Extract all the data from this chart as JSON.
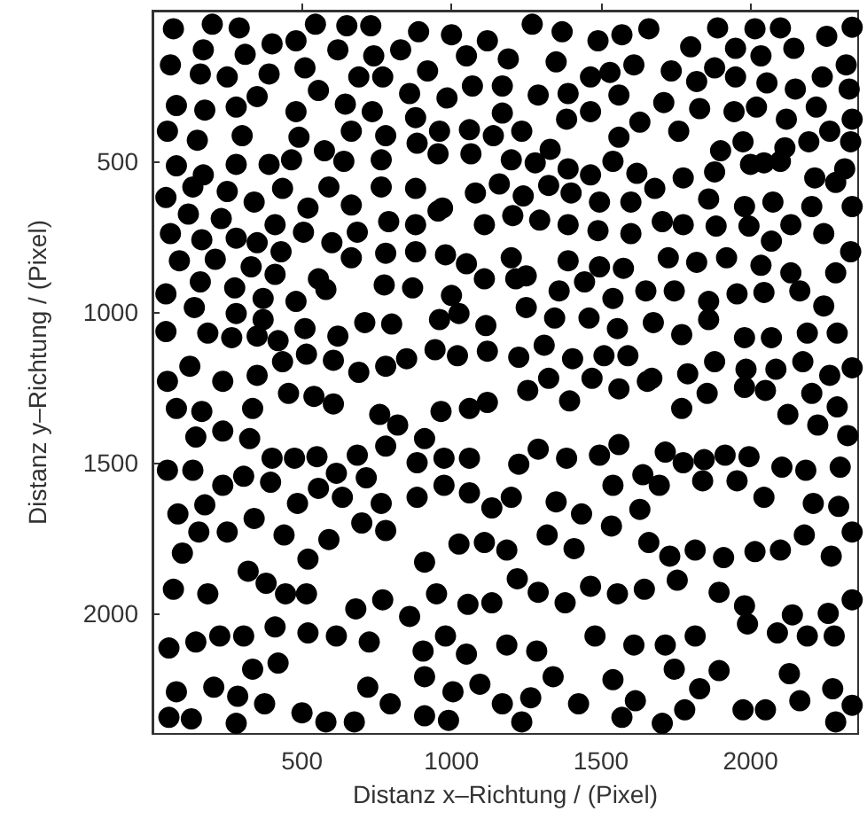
{
  "chart_data": {
    "type": "scatter",
    "xlabel": "Distanz x–Richtung / (Pixel)",
    "ylabel": "Distanz y–Richtung / (Pixel)",
    "xlim": [
      0,
      2360
    ],
    "ylim": [
      2400,
      0
    ],
    "xticks": [
      500,
      1000,
      1500,
      2000
    ],
    "yticks": [
      500,
      1000,
      1500,
      2000
    ],
    "grid": false,
    "marker": "circle",
    "series": [
      {
        "color": "#000000",
        "x": [
          70,
          200,
          290,
          400,
          480,
          545,
          650,
          730,
          620,
          740,
          830,
          890,
          1000,
          1050,
          1120,
          1190,
          1270,
          1370,
          1490,
          1570,
          1660,
          1800,
          1890,
          1950,
          2015,
          2100,
          2035,
          2145,
          2255,
          2340,
          2320,
          60,
          170,
          160,
          250,
          310,
          390,
          510,
          350,
          280,
          175,
          80,
          690,
          770,
          860,
          920,
          985,
          1070,
          1170,
          1290,
          1350,
          1390,
          1465,
          1530,
          1610,
          1560,
          1735,
          1820,
          1880,
          1950,
          2055,
          2150,
          2240,
          2330,
          1945,
          2020,
          2120,
          2220,
          2340,
          50,
          150,
          300,
          480,
          490,
          555,
          645,
          735,
          665,
          780,
          880,
          960,
          1060,
          1140,
          1170,
          1235,
          1385,
          1465,
          1560,
          1630,
          1710,
          1760,
          1830,
          1900,
          1975,
          2045,
          2115,
          2195,
          2265,
          2335,
          80,
          170,
          280,
          390,
          465,
          575,
          640,
          765,
          885,
          955,
          1065,
          1200,
          1280,
          1330,
          1390,
          1465,
          1540,
          1620,
          1775,
          1880,
          2000,
          2100,
          2215,
          2315,
          45,
          135,
          250,
          340,
          435,
          520,
          590,
          665,
          765,
          880,
          970,
          1080,
          1160,
          1240,
          1325,
          1400,
          1495,
          1600,
          1680,
          1860,
          1980,
          2075,
          2205,
          2285,
          2340,
          60,
          165,
          120,
          230,
          280,
          350,
          410,
          505,
          600,
          685,
          790,
          880,
          955,
          1110,
          1205,
          1295,
          1390,
          1490,
          1600,
          1705,
          1775,
          1885,
          1995,
          2070,
          2135,
          2245,
          2335,
          430,
          90,
          210,
          330,
          410,
          555,
          665,
          780,
          880,
          980,
          1050,
          1200,
          1250,
          1390,
          1495,
          1575,
          1725,
          1820,
          1920,
          2035,
          2135,
          2285,
          45,
          160,
          275,
          370,
          480,
          580,
          775,
          870,
          1000,
          1110,
          1215,
          1360,
          1445,
          1540,
          1650,
          1745,
          1860,
          1955,
          2045,
          2165,
          2245,
          140,
          280,
          370,
          510,
          620,
          710,
          800,
          960,
          1025,
          1115,
          1250,
          1345,
          1460,
          1555,
          1675,
          1770,
          1860,
          1980,
          2070,
          2190,
          2290,
          45,
          185,
          265,
          350,
          420,
          515,
          605,
          690,
          780,
          850,
          945,
          1020,
          1120,
          1225,
          1310,
          1405,
          1510,
          1590,
          1670,
          1790,
          1880,
          1985,
          2085,
          2175,
          2265,
          2340,
          125,
          235,
          350,
          435,
          50,
          80,
          165,
          235,
          335,
          455,
          540,
          605,
          760,
          820,
          910,
          965,
          1060,
          1120,
          1255,
          1325,
          1395,
          1470,
          1560,
          1655,
          1770,
          1855,
          1980,
          2050,
          2125,
          2205,
          2290,
          2325,
          145,
          325,
          400,
          475,
          550,
          615,
          685,
          780,
          885,
          975,
          1060,
          1225,
          1290,
          1385,
          1495,
          1560,
          1640,
          1715,
          1775,
          1845,
          1915,
          1995,
          2105,
          2185,
          2300,
          2225,
          50,
          135,
          85,
          175,
          235,
          305,
          395,
          485,
          555,
          635,
          715,
          765,
          885,
          975,
          1060,
          1135,
          1200,
          1350,
          1435,
          1540,
          1695,
          1840,
          1955,
          2045,
          2210,
          2295,
          155,
          250,
          340,
          440,
          520,
          590,
          700,
          780,
          910,
          1025,
          1110,
          1185,
          1320,
          1410,
          1535,
          1630,
          1660,
          1730,
          1815,
          1910,
          2015,
          2100,
          2180,
          2270,
          2340,
          100,
          70,
          185,
          320,
          380,
          445,
          515,
          680,
          770,
          860,
          950,
          1055,
          1135,
          1220,
          1290,
          1380,
          1465,
          1555,
          1645,
          1755,
          1895,
          1980,
          2140,
          2260,
          2340,
          55,
          145,
          225,
          305,
          410,
          520,
          615,
          725,
          980,
          1050,
          1185,
          1285,
          1480,
          1610,
          1715,
          1815,
          1990,
          2090,
          2190,
          2280,
          80,
          205,
          285,
          335,
          420,
          375,
          500,
          580,
          675,
          720,
          795,
          905,
          910,
          1005,
          1095,
          1170,
          1265,
          1340,
          1425,
          1540,
          1615,
          1745,
          1830,
          1895,
          1975,
          2050,
          2130,
          2165,
          2275,
          2340,
          55,
          130,
          280,
          910,
          990,
          1235,
          1570,
          1705,
          1780,
          2285
        ],
        "values": [
          60,
          45,
          57,
          110,
          100,
          45,
          50,
          50,
          130,
          150,
          130,
          70,
          80,
          150,
          100,
          160,
          45,
          70,
          100,
          80,
          60,
          120,
          57,
          125,
          60,
          57,
          150,
          125,
          85,
          55,
          180,
          180,
          130,
          210,
          220,
          145,
          210,
          190,
          285,
          320,
          330,
          315,
          220,
          220,
          275,
          200,
          290,
          250,
          250,
          280,
          170,
          275,
          220,
          205,
          180,
          280,
          200,
          235,
          190,
          220,
          240,
          260,
          220,
          260,
          335,
          320,
          360,
          320,
          360,
          400,
          430,
          415,
          335,
          420,
          265,
          310,
          335,
          400,
          415,
          355,
          400,
          395,
          415,
          340,
          400,
          360,
          335,
          420,
          370,
          305,
          400,
          325,
          465,
          435,
          505,
          455,
          435,
          400,
          435,
          515,
          545,
          510,
          510,
          495,
          465,
          500,
          495,
          440,
          475,
          475,
          495,
          505,
          460,
          525,
          545,
          500,
          540,
          555,
          535,
          510,
          500,
          555,
          525,
          620,
          585,
          600,
          635,
          590,
          655,
          585,
          645,
          585,
          590,
          655,
          605,
          575,
          615,
          580,
          605,
          635,
          635,
          590,
          625,
          650,
          635,
          650,
          570,
          650,
          740,
          760,
          675,
          690,
          755,
          770,
          710,
          735,
          770,
          735,
          700,
          710,
          665,
          710,
          680,
          695,
          710,
          730,
          740,
          700,
          710,
          715,
          715,
          765,
          710,
          740,
          800,
          800,
          830,
          825,
          850,
          875,
          890,
          820,
          805,
          800,
          810,
          840,
          820,
          880,
          830,
          850,
          855,
          820,
          835,
          820,
          845,
          870,
          870,
          940,
          900,
          920,
          955,
          965,
          925,
          910,
          920,
          945,
          890,
          890,
          930,
          900,
          955,
          930,
          930,
          965,
          940,
          935,
          930,
          980,
          985,
          1005,
          1025,
          1055,
          1080,
          1035,
          1040,
          1025,
          1005,
          1045,
          985,
          1020,
          1020,
          1055,
          1035,
          1075,
          1025,
          1085,
          1085,
          1070,
          1070,
          1065,
          1070,
          1085,
          1080,
          1095,
          1140,
          1160,
          1200,
          1180,
          1155,
          1125,
          1145,
          1130,
          1150,
          1110,
          1155,
          1145,
          1145,
          1220,
          1205,
          1165,
          1190,
          1190,
          1165,
          1210,
          1185,
          1180,
          1230,
          1210,
          1165,
          1230,
          1320,
          1330,
          1395,
          1320,
          1270,
          1280,
          1305,
          1340,
          1375,
          1420,
          1330,
          1320,
          1300,
          1260,
          1220,
          1295,
          1220,
          1255,
          1230,
          1320,
          1270,
          1250,
          1260,
          1340,
          1270,
          1315,
          1410,
          1415,
          1420,
          1485,
          1485,
          1480,
          1535,
          1475,
          1445,
          1500,
          1485,
          1485,
          1505,
          1455,
          1485,
          1475,
          1440,
          1540,
          1465,
          1500,
          1490,
          1475,
          1480,
          1515,
          1525,
          1515,
          1375,
          1525,
          1525,
          1670,
          1640,
          1575,
          1545,
          1565,
          1635,
          1585,
          1615,
          1550,
          1635,
          1615,
          1575,
          1600,
          1650,
          1615,
          1630,
          1670,
          1575,
          1575,
          1560,
          1560,
          1615,
          1635,
          1645,
          1730,
          1730,
          1685,
          1740,
          1820,
          1755,
          1700,
          1725,
          1830,
          1770,
          1765,
          1790,
          1740,
          1785,
          1710,
          1655,
          1765,
          1810,
          1790,
          1815,
          1795,
          1790,
          1740,
          1810,
          1730,
          1800,
          1920,
          1935,
          1860,
          1900,
          1935,
          1935,
          1985,
          1955,
          2010,
          1935,
          1970,
          1965,
          1885,
          1930,
          1965,
          1910,
          1935,
          1920,
          1890,
          1930,
          1975,
          2005,
          2000,
          1955,
          2115,
          2095,
          2075,
          2075,
          2045,
          2065,
          2075,
          2095,
          2075,
          2135,
          2105,
          2125,
          2075,
          2105,
          2105,
          2075,
          2035,
          2065,
          2075,
          2075,
          2260,
          2245,
          2275,
          2185,
          2165,
          2300,
          2330,
          2360,
          2360,
          2245,
          2300,
          2125,
          2210,
          2260,
          2235,
          2300,
          2280,
          2210,
          2300,
          2220,
          2290,
          2185,
          2250,
          2190,
          2320,
          2320,
          2200,
          2290,
          2250,
          2305,
          2345,
          2350,
          2365,
          2340,
          2355,
          2360,
          2345,
          2365,
          2320,
          2360
        ]
      }
    ]
  }
}
